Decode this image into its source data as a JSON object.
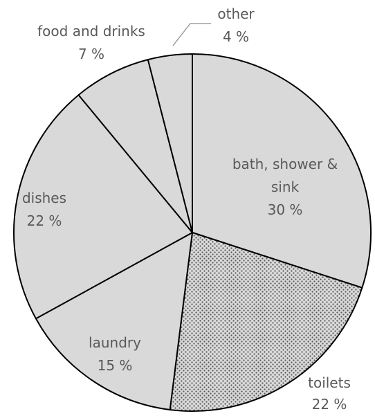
{
  "chart_data": {
    "type": "pie",
    "slices": [
      {
        "label": [
          "bath, shower &",
          "sink"
        ],
        "value": 30,
        "value_text": "30 %",
        "color": "#d9d9d9",
        "pattern": "none"
      },
      {
        "label": [
          "toilets"
        ],
        "value": 22,
        "value_text": "22 %",
        "color": "#d9d9d9",
        "pattern": "dots"
      },
      {
        "label": [
          "laundry"
        ],
        "value": 15,
        "value_text": "15 %",
        "color": "#d9d9d9",
        "pattern": "none"
      },
      {
        "label": [
          "dishes"
        ],
        "value": 22,
        "value_text": "22 %",
        "color": "#d9d9d9",
        "pattern": "none"
      },
      {
        "label": [
          "food and drinks"
        ],
        "value": 7,
        "value_text": "7 %",
        "color": "#d9d9d9",
        "pattern": "none"
      },
      {
        "label": [
          "other"
        ],
        "value": 4,
        "value_text": "4 %",
        "color": "#d9d9d9",
        "pattern": "none"
      }
    ],
    "start": "12 o'clock",
    "direction": "clockwise",
    "outline_color": "#000000",
    "label_color": "#595959"
  }
}
